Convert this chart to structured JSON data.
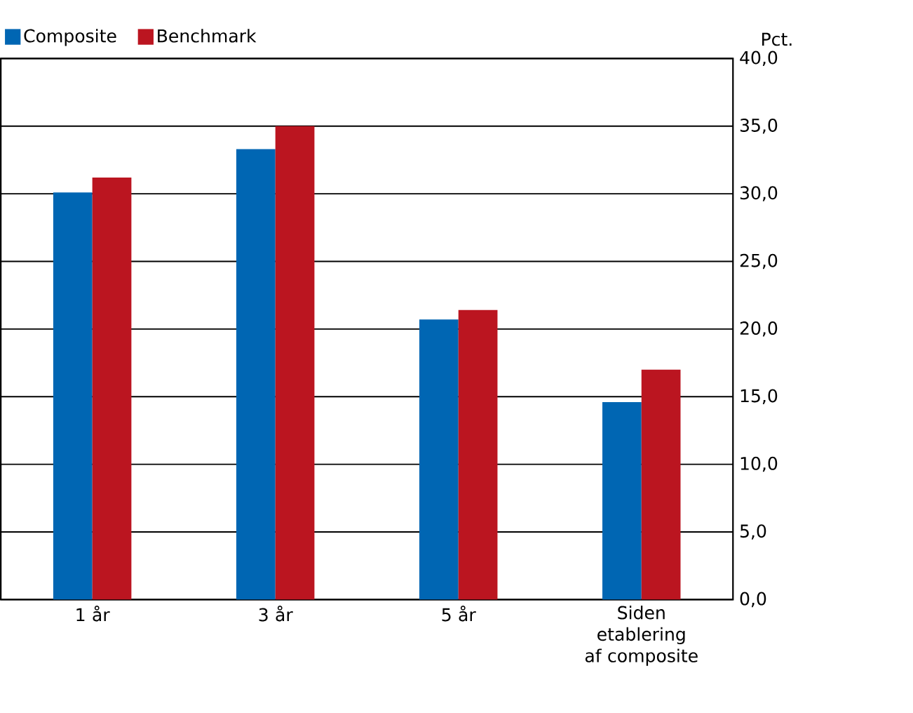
{
  "chart_data": {
    "type": "bar",
    "ylabel": "Pct.",
    "categories": [
      "1 år",
      "3 år",
      "5 år",
      "Siden etablering af composite"
    ],
    "series": [
      {
        "name": "Composite",
        "color": "#0066b3",
        "values": [
          30.1,
          33.3,
          20.7,
          14.6
        ]
      },
      {
        "name": "Benchmark",
        "color": "#bb1520",
        "values": [
          31.2,
          35.0,
          21.4,
          17.0
        ]
      }
    ],
    "ylim": [
      0,
      40
    ],
    "yticks": [
      {
        "value": 0,
        "label": "0,0"
      },
      {
        "value": 5,
        "label": "5,0"
      },
      {
        "value": 10,
        "label": "10,0"
      },
      {
        "value": 15,
        "label": "15,0"
      },
      {
        "value": 20,
        "label": "20,0"
      },
      {
        "value": 25,
        "label": "25,0"
      },
      {
        "value": 30,
        "label": "30,0"
      },
      {
        "value": 35,
        "label": "35,0"
      },
      {
        "value": 40,
        "label": "40,0"
      }
    ],
    "grid": "y",
    "legend": "top left"
  }
}
